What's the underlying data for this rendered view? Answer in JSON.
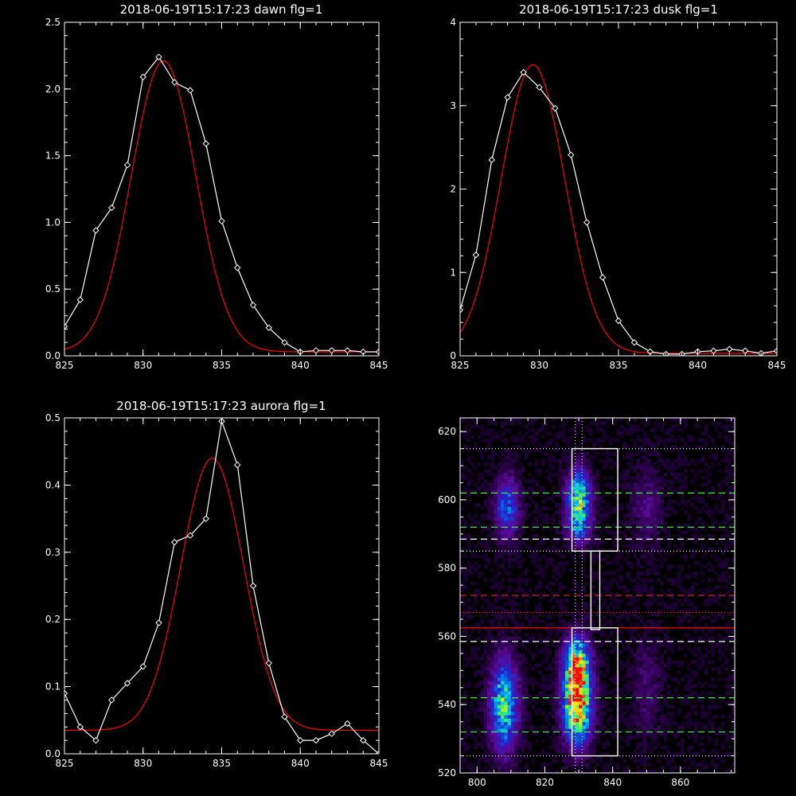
{
  "chart_data": [
    {
      "id": "dawn",
      "type": "line",
      "title": "2018-06-19T15:17:23 dawn flg=1",
      "xlim": [
        825,
        845
      ],
      "ylim": [
        0,
        2.5
      ],
      "xticks": [
        825,
        830,
        835,
        840,
        845
      ],
      "yticks": [
        0.0,
        0.5,
        1.0,
        1.5,
        2.0,
        2.5
      ],
      "ytick_labels": [
        "0.0",
        "0.5",
        "1.0",
        "1.5",
        "2.0",
        "2.5"
      ],
      "series": [
        {
          "kind": "data",
          "color": "#ffffff",
          "x": [
            825,
            826,
            827,
            828,
            829,
            830,
            831,
            832,
            833,
            834,
            835,
            836,
            837,
            838,
            839,
            840,
            841,
            842,
            843,
            844,
            845
          ],
          "y": [
            0.22,
            0.42,
            0.94,
            1.11,
            1.43,
            2.09,
            2.24,
            2.05,
            1.99,
            1.59,
            1.01,
            0.66,
            0.38,
            0.21,
            0.1,
            0.03,
            0.04,
            0.04,
            0.04,
            0.03,
            0.03
          ]
        },
        {
          "kind": "fit",
          "color": "#ff0000",
          "amp": 2.18,
          "center": 831.3,
          "sigma": 2.05,
          "offset": 0.03
        }
      ]
    },
    {
      "id": "dusk",
      "type": "line",
      "title": "2018-06-19T15:17:23 dusk flg=1",
      "xlim": [
        825,
        845
      ],
      "ylim": [
        0,
        4
      ],
      "xticks": [
        825,
        830,
        835,
        840,
        845
      ],
      "yticks": [
        0,
        1,
        2,
        3,
        4
      ],
      "ytick_labels": [
        "0",
        "1",
        "2",
        "3",
        "4"
      ],
      "series": [
        {
          "kind": "data",
          "color": "#ffffff",
          "x": [
            825,
            826,
            827,
            828,
            829,
            830,
            831,
            832,
            833,
            834,
            835,
            836,
            837,
            838,
            839,
            840,
            841,
            842,
            843,
            844,
            845
          ],
          "y": [
            0.55,
            1.21,
            2.35,
            3.1,
            3.4,
            3.22,
            2.97,
            2.41,
            1.6,
            0.94,
            0.42,
            0.16,
            0.05,
            0.02,
            0.02,
            0.05,
            0.06,
            0.08,
            0.06,
            0.03,
            0.06
          ]
        },
        {
          "kind": "fit",
          "color": "#ff0000",
          "amp": 3.46,
          "center": 829.6,
          "sigma": 2.0,
          "offset": 0.03
        }
      ]
    },
    {
      "id": "aurora",
      "type": "line",
      "title": "2018-06-19T15:17:23 aurora flg=1",
      "xlim": [
        825,
        845
      ],
      "ylim": [
        0,
        0.5
      ],
      "xticks": [
        825,
        830,
        835,
        840,
        845
      ],
      "yticks": [
        0.0,
        0.1,
        0.2,
        0.3,
        0.4,
        0.5
      ],
      "ytick_labels": [
        "0.0",
        "0.1",
        "0.2",
        "0.3",
        "0.4",
        "0.5"
      ],
      "series": [
        {
          "kind": "data",
          "color": "#ffffff",
          "x": [
            825,
            826,
            827,
            828,
            829,
            830,
            831,
            832,
            833,
            834,
            835,
            836,
            837,
            838,
            839,
            840,
            841,
            842,
            843,
            844,
            845
          ],
          "y": [
            0.09,
            0.04,
            0.02,
            0.08,
            0.105,
            0.13,
            0.195,
            0.315,
            0.325,
            0.35,
            0.495,
            0.43,
            0.25,
            0.135,
            0.055,
            0.02,
            0.02,
            0.03,
            0.045,
            0.02,
            0.0
          ]
        },
        {
          "kind": "fit",
          "color": "#ff0000",
          "amp": 0.405,
          "center": 834.4,
          "sigma": 2.0,
          "offset": 0.035
        }
      ]
    },
    {
      "id": "image",
      "type": "heatmap",
      "title": "",
      "xlim": [
        795,
        876
      ],
      "ylim": [
        520,
        624
      ],
      "xticks": [
        800,
        820,
        840,
        860
      ],
      "yticks": [
        520,
        540,
        560,
        580,
        600,
        620
      ],
      "blobs": [
        {
          "cx": 829.5,
          "cy": 541,
          "sx": 2.8,
          "sy": 8,
          "amp": 1.0
        },
        {
          "cx": 829.5,
          "cy": 553,
          "sx": 2.6,
          "sy": 5,
          "amp": 0.55
        },
        {
          "cx": 808,
          "cy": 540,
          "sx": 2.8,
          "sy": 9,
          "amp": 0.62
        },
        {
          "cx": 830,
          "cy": 602,
          "sx": 2.4,
          "sy": 5,
          "amp": 0.6
        },
        {
          "cx": 830,
          "cy": 593,
          "sx": 2.4,
          "sy": 4,
          "amp": 0.45
        },
        {
          "cx": 809,
          "cy": 598,
          "sx": 2.4,
          "sy": 6,
          "amp": 0.42
        },
        {
          "cx": 850,
          "cy": 598,
          "sx": 3.0,
          "sy": 8,
          "amp": 0.14
        },
        {
          "cx": 850,
          "cy": 545,
          "sx": 3.0,
          "sy": 10,
          "amp": 0.12
        }
      ],
      "boxes": [
        {
          "x0": 828.0,
          "x1": 841.5,
          "y0": 585,
          "y1": 615
        },
        {
          "x0": 833.6,
          "x1": 836.2,
          "y0": 562,
          "y1": 585
        },
        {
          "x0": 828.0,
          "x1": 841.5,
          "y0": 525,
          "y1": 562.5
        }
      ],
      "hlines": [
        {
          "y": 615,
          "color": "#ffffff",
          "style": "dotted"
        },
        {
          "y": 602,
          "color": "#3cf03c",
          "style": "dashed"
        },
        {
          "y": 592,
          "color": "#3cf03c",
          "style": "dashed"
        },
        {
          "y": 588.5,
          "color": "#ffffff",
          "style": "dashed"
        },
        {
          "y": 585,
          "color": "#ffffff",
          "style": "dotted"
        },
        {
          "y": 572,
          "color": "#d02020",
          "style": "dashed"
        },
        {
          "y": 567,
          "color": "#d02020",
          "style": "dotted"
        },
        {
          "y": 562.5,
          "color": "#ff0000",
          "style": "solid"
        },
        {
          "y": 558.5,
          "color": "#ffffff",
          "style": "dashed"
        },
        {
          "y": 542,
          "color": "#3cf03c",
          "style": "dashed"
        },
        {
          "y": 532,
          "color": "#3cf03c",
          "style": "dashed"
        },
        {
          "y": 525,
          "color": "#ffffff",
          "style": "dotted"
        }
      ],
      "vlines": [
        {
          "x": 829.0,
          "color": "#ffffff",
          "style": "dotted"
        },
        {
          "x": 831.0,
          "color": "#ffffff",
          "style": "dotted"
        }
      ]
    }
  ]
}
